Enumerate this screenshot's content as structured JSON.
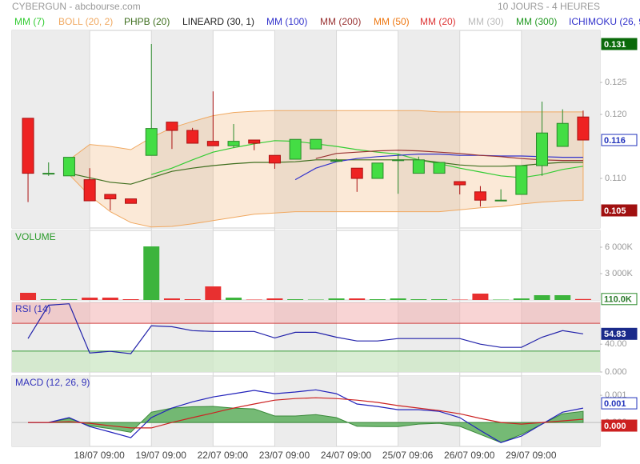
{
  "chart_data": [
    {
      "type": "candlestick",
      "title": "CYBERGUN - abcbourse.com",
      "subtitle": "10 JOURS - 4 HEURES",
      "xlim": [
        -0.78,
        27.82
      ],
      "xticks": [
        {
          "value": 3,
          "label": "18/07 09:00"
        },
        {
          "value": 6,
          "label": "19/07 09:00"
        },
        {
          "value": 9,
          "label": "22/07 09:00"
        },
        {
          "value": 12,
          "label": "23/07 09:00"
        },
        {
          "value": 15,
          "label": "24/07 09:00"
        },
        {
          "value": 18,
          "label": "25/07 09:06"
        },
        {
          "value": 21,
          "label": "26/07 09:00"
        },
        {
          "value": 24,
          "label": "29/07 09:00"
        }
      ],
      "ylim": [
        0.10225,
        0.13313
      ],
      "yticks": [
        {
          "value": 0.11,
          "label": "0.110"
        },
        {
          "value": 0.12,
          "label": "0.120"
        },
        0.125
      ],
      "open": [
        0.1194,
        0.1108,
        0.1104,
        0.1098,
        0.1075,
        0.1068,
        0.1136,
        0.1188,
        0.1175,
        0.1158,
        0.1151,
        0.116,
        0.1136,
        0.113,
        0.1146,
        0.1128,
        0.1116,
        0.11,
        0.1129,
        0.1108,
        0.1108,
        0.1095,
        0.1079,
        0.1066,
        0.1075,
        0.112,
        0.115,
        0.1196
      ],
      "high": [
        0.1194,
        0.1125,
        0.1133,
        0.1116,
        0.1075,
        0.1068,
        0.131,
        0.1188,
        0.1179,
        0.1236,
        0.1185,
        0.116,
        0.1136,
        0.1161,
        0.1161,
        0.1131,
        0.1116,
        0.1124,
        0.1138,
        0.1134,
        0.1125,
        0.1095,
        0.1088,
        0.1083,
        0.112,
        0.122,
        0.1208,
        0.1206
      ],
      "low": [
        0.1063,
        0.1104,
        0.1104,
        0.1065,
        0.105,
        0.1061,
        0.1136,
        0.1146,
        0.1155,
        0.1151,
        0.1148,
        0.1144,
        0.1115,
        0.113,
        0.1146,
        0.1126,
        0.1079,
        0.11,
        0.1076,
        0.1108,
        0.1108,
        0.1075,
        0.1056,
        0.1066,
        0.1075,
        0.1104,
        0.115,
        0.116
      ],
      "close": [
        0.1108,
        0.1108,
        0.1133,
        0.1065,
        0.1068,
        0.1061,
        0.1178,
        0.1175,
        0.1155,
        0.1151,
        0.1158,
        0.1155,
        0.1124,
        0.1161,
        0.1161,
        0.1128,
        0.11,
        0.1124,
        0.1129,
        0.1129,
        0.1125,
        0.109,
        0.1066,
        0.1066,
        0.112,
        0.1171,
        0.1186,
        0.116
      ],
      "up_color": "#44dd44",
      "down_color": "#ee2222",
      "series": [
        {
          "name": "MM (7)",
          "color": "#33cc33",
          "values": [
            null,
            null,
            null,
            null,
            null,
            null,
            0.1106,
            0.1116,
            0.1129,
            0.1141,
            0.1148,
            0.1154,
            0.1159,
            0.1158,
            0.1154,
            0.115,
            0.1145,
            0.1141,
            0.1138,
            0.1129,
            0.1123,
            0.1116,
            0.111,
            0.1104,
            0.1101,
            0.1106,
            0.1114,
            0.1119
          ]
        },
        {
          "name": "BOLL (20, 2)",
          "color": "#f0a860",
          "upper": [
            null,
            null,
            0.1129,
            0.1153,
            0.115,
            0.1145,
            0.1164,
            0.1179,
            0.1189,
            0.1198,
            0.1203,
            0.1205,
            0.1206,
            0.1206,
            0.1206,
            0.1206,
            0.1206,
            0.1206,
            0.1206,
            0.1206,
            0.1204,
            0.1204,
            0.1204,
            0.1204,
            0.1204,
            0.1204,
            0.1204,
            0.1204
          ],
          "lower": [
            null,
            null,
            0.1106,
            0.1073,
            0.1048,
            0.1031,
            0.1024,
            0.1025,
            0.1029,
            0.1034,
            0.1039,
            0.1044,
            0.1046,
            0.1048,
            0.1048,
            0.1048,
            0.1048,
            0.1048,
            0.1048,
            0.1048,
            0.1048,
            0.1051,
            0.1054,
            0.1056,
            0.106,
            0.1063,
            0.1065,
            0.1066
          ]
        },
        {
          "name": "PHPB (20)",
          "color": "#3f6f1f",
          "values": [
            null,
            null,
            0.1108,
            0.1101,
            0.1094,
            0.1091,
            0.1101,
            0.1111,
            0.1116,
            0.112,
            0.1123,
            0.1125,
            0.1125,
            0.1126,
            0.1129,
            0.1129,
            0.1129,
            0.1129,
            0.1129,
            0.1129,
            0.1125,
            0.1121,
            0.1119,
            0.1119,
            0.112,
            0.1123,
            0.1125,
            0.1125
          ]
        },
        {
          "name": "LINEARD (30, 1)",
          "color": "#222222"
        },
        {
          "name": "MM (100)",
          "color": "#3333cc",
          "values": [
            null,
            null,
            null,
            null,
            null,
            null,
            null,
            null,
            null,
            null,
            null,
            null,
            null,
            0.1098,
            0.1116,
            0.1126,
            0.1131,
            0.1134,
            0.1136,
            0.1138,
            0.1138,
            0.1136,
            0.1136,
            0.1135,
            0.1135,
            0.1134,
            0.1133,
            0.1133
          ]
        },
        {
          "name": "MM (200)",
          "color": "#993333",
          "values": [
            null,
            null,
            null,
            null,
            null,
            null,
            null,
            null,
            null,
            null,
            null,
            null,
            null,
            null,
            0.1131,
            0.1139,
            0.1141,
            0.1143,
            0.1144,
            0.1143,
            0.1141,
            0.1139,
            0.1136,
            0.1134,
            0.1131,
            0.1129,
            0.1128,
            0.1128
          ]
        },
        {
          "name": "MM (50)",
          "color": "#ee7711"
        },
        {
          "name": "MM (20)",
          "color": "#dd3333"
        },
        {
          "name": "MM (30)",
          "color": "#bbbbbb"
        },
        {
          "name": "MM (300)",
          "color": "#229922"
        },
        {
          "name": "ICHIMOKU (26, 9",
          "color": "#3333cc"
        }
      ]
    },
    {
      "type": "bar",
      "title": "VOLUME",
      "ylim": [
        0,
        7910000
      ],
      "yticks": [
        {
          "value": 3000000,
          "label": "3 000K"
        },
        {
          "value": 6000000,
          "label": "6 000K"
        }
      ],
      "values": [
        818000,
        90000,
        90000,
        270000,
        270000,
        90000,
        6090000,
        180000,
        90000,
        1545000,
        270000,
        45000,
        180000,
        90000,
        45000,
        180000,
        180000,
        90000,
        180000,
        90000,
        90000,
        45000,
        727000,
        45000,
        180000,
        545000,
        545000,
        110000
      ],
      "last_label": "110.0K"
    },
    {
      "type": "line",
      "title": "RSI (14)",
      "ylim": [
        0,
        100
      ],
      "yticks": [
        {
          "value": 0,
          "label": "0.000"
        },
        {
          "value": 40,
          "label": "40.00"
        }
      ],
      "overbought": 70,
      "oversold": 30,
      "color": "#2222aa",
      "values": [
        48,
        96,
        98,
        27.4,
        29.7,
        26.3,
        66.3,
        65,
        59.4,
        58.3,
        58.3,
        58.3,
        49,
        57,
        57,
        50,
        44.6,
        44.6,
        48,
        48,
        48,
        48,
        40,
        35.4,
        35.4,
        50,
        59.4,
        54.83
      ]
    },
    {
      "type": "macd",
      "title": "MACD (12, 26, 9)",
      "ylim": [
        -0.00088,
        0.00171
      ],
      "yticks": [
        {
          "value": 0,
          "label": "0.000"
        },
        0.001
      ],
      "series": [
        {
          "color": "#2222bb",
          "values": [
            0,
            0,
            0.00018,
            -0.00015,
            -0.00035,
            -0.00056,
            0.00018,
            0.00053,
            0.00076,
            0.00094,
            0.00106,
            0.00118,
            0.00106,
            0.00112,
            0.0012,
            0.00106,
            0.00068,
            0.00059,
            0.00047,
            0.00047,
            0.00041,
            0.00018,
            -0.00029,
            -0.00074,
            -0.0005,
            -6e-05,
            0.00038,
            0.00053
          ],
          "last_label": "0.001"
        },
        {
          "color": "#cc2222",
          "values": [
            0,
            0,
            3e-05,
            -3e-05,
            -0.00012,
            -0.0002,
            -0.0002,
            0,
            0.00018,
            0.00035,
            0.00053,
            0.00068,
            0.00082,
            0.00088,
            0.00091,
            0.00088,
            0.00082,
            0.00074,
            0.00062,
            0.00053,
            0.00044,
            0.00032,
            0.00015,
            0,
            -6e-05,
            0,
            6e-05,
            0.00012
          ],
          "last_label": "0.000"
        }
      ],
      "histogram": {
        "color": "#66b266",
        "values": [
          0,
          0,
          0.00015,
          -0.00012,
          -0.00023,
          -0.00036,
          0.00038,
          0.00053,
          0.00058,
          0.00059,
          0.00053,
          0.0005,
          0.00024,
          0.00024,
          0.00029,
          0.00018,
          -0.00014,
          -0.00015,
          -0.00015,
          -6e-05,
          -3e-05,
          -0.00014,
          -0.00044,
          -0.00074,
          -0.00044,
          -6e-05,
          0.00032,
          0.00041
        ]
      }
    }
  ]
}
